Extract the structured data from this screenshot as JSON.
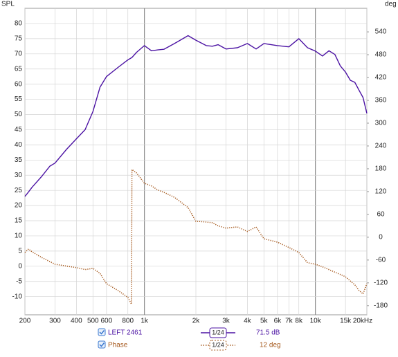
{
  "chart_data": {
    "type": "line",
    "y_label": "SPL",
    "y2_label": "deg",
    "x_scale": "log",
    "grid": true,
    "x": [
      200,
      210,
      220,
      250,
      280,
      300,
      350,
      400,
      450,
      500,
      550,
      600,
      700,
      800,
      840,
      845,
      900,
      1000,
      1100,
      1200,
      1300,
      1500,
      1800,
      2000,
      2300,
      2500,
      2700,
      3000,
      3500,
      4000,
      4500,
      5000,
      6000,
      7000,
      8000,
      9000,
      10000,
      11000,
      12000,
      13000,
      14000,
      15000,
      16000,
      17000,
      18000,
      19000,
      20000
    ],
    "series": [
      {
        "name": "LEFT 2461",
        "color": "#4b12a3",
        "axis": "y",
        "style": "solid",
        "values": [
          23,
          24.5,
          26,
          29.5,
          33,
          34,
          38.5,
          42,
          45,
          51,
          59,
          62.5,
          65.5,
          68,
          68.7,
          68.8,
          70.5,
          72.7,
          71,
          71.3,
          71.5,
          73.4,
          76,
          74.5,
          72.7,
          72.5,
          73,
          71.6,
          72,
          73.4,
          71.6,
          73.4,
          72.7,
          72.3,
          75,
          72,
          70.9,
          69.3,
          71,
          69.8,
          66,
          64,
          61.3,
          60.6,
          58,
          55.6,
          50.4
        ]
      },
      {
        "name": "Phase",
        "color": "#a5581c",
        "axis": "y2",
        "style": "dotted",
        "values": [
          -40,
          -31,
          -38,
          -53,
          -64,
          -71,
          -76,
          -80,
          -85,
          -82,
          -95,
          -122,
          -140,
          -158,
          -176,
          178,
          169,
          142,
          135,
          124,
          118,
          105,
          78,
          42,
          40,
          38,
          30,
          24,
          27,
          15,
          27,
          -4,
          -13,
          -27,
          -40,
          -67,
          -71,
          -78,
          -85,
          -92,
          -98,
          -104,
          -115,
          -125,
          -140,
          -149,
          -122
        ]
      }
    ],
    "smoothing": "1/24",
    "readouts": [
      "71.5 dB",
      "12 deg"
    ],
    "xlim": [
      200,
      20000
    ],
    "xticks": [
      200,
      300,
      400,
      500,
      600,
      800,
      {
        "value": 1000,
        "label": "1k"
      },
      {
        "value": 2000,
        "label": "2k"
      },
      {
        "value": 3000,
        "label": "3k"
      },
      {
        "value": 4000,
        "label": "4k"
      },
      {
        "value": 5000,
        "label": "5k"
      },
      {
        "value": 6000,
        "label": "6k"
      },
      {
        "value": 7000,
        "label": "7k"
      },
      {
        "value": 8000,
        "label": "8k"
      },
      {
        "value": 10000,
        "label": "10k"
      },
      {
        "value": 15000,
        "label": "15k"
      },
      {
        "value": 20000,
        "label": "20kHz"
      }
    ],
    "major_xlines": [
      1000,
      10000
    ],
    "ylim": [
      -16,
      85
    ],
    "yticks": [
      80,
      75,
      70,
      65,
      60,
      55,
      50,
      45,
      40,
      35,
      30,
      25,
      20,
      15,
      10,
      5,
      0,
      -5,
      -10
    ],
    "y2lim": [
      -204,
      602
    ],
    "y2ticks": [
      540,
      480,
      420,
      360,
      300,
      240,
      180,
      120,
      60,
      0,
      -60,
      -120,
      -180
    ]
  }
}
